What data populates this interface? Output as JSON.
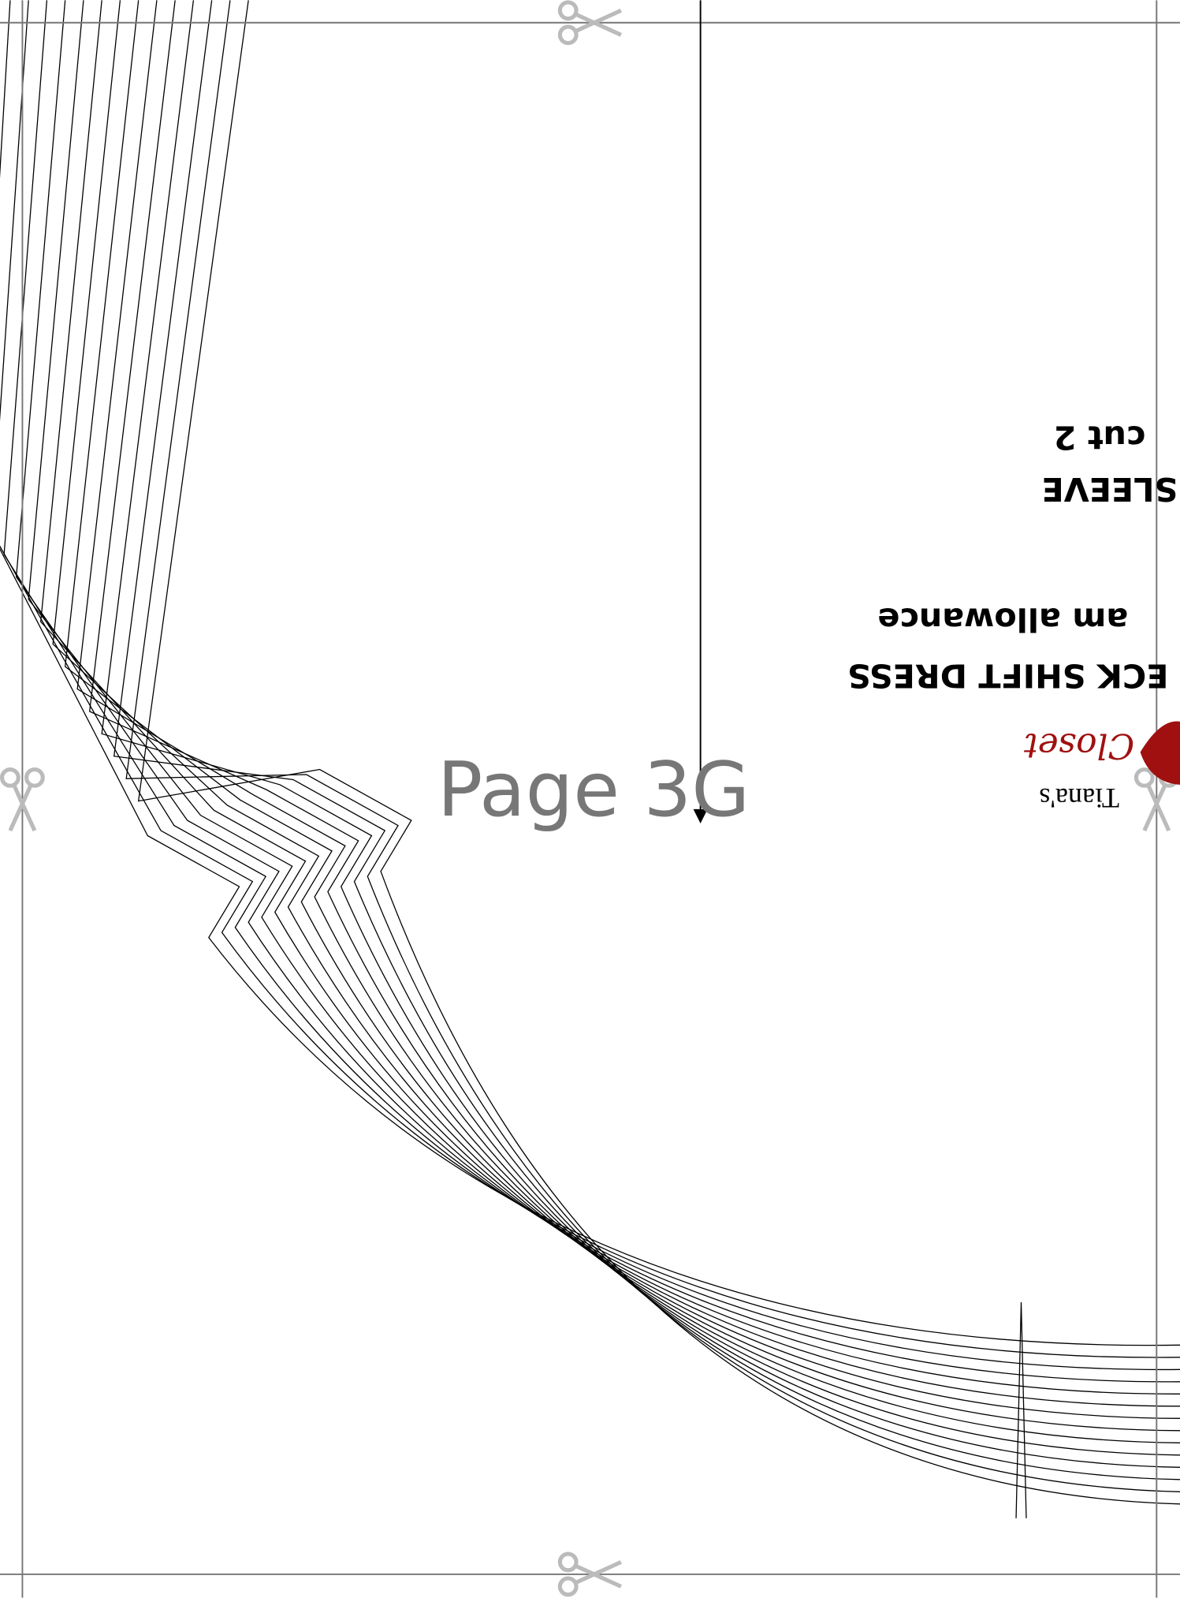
{
  "page_label": "Page 3G",
  "pattern": {
    "brand": "Tiana's",
    "brand_script": "Closet",
    "title": "ECK SHIFT DRESS",
    "note": "am allowance",
    "piece": "SLEEVE",
    "cut": "cut 2"
  }
}
